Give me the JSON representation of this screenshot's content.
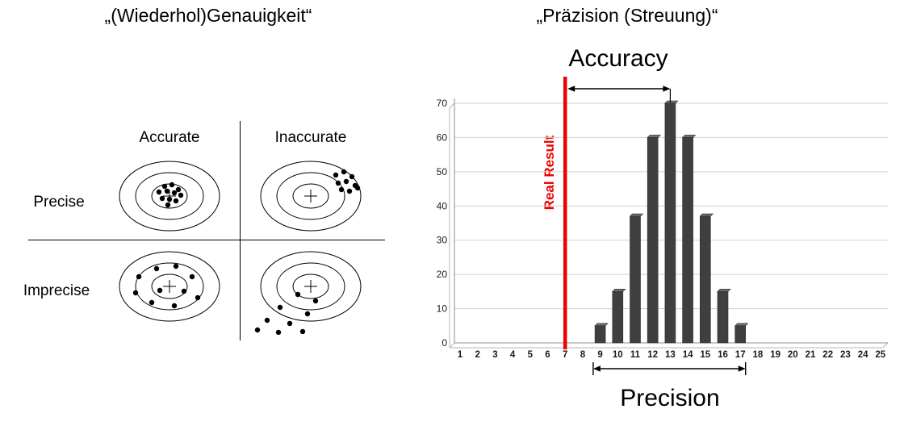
{
  "titles": {
    "left": "„(Wiederhol)Genauigkeit“",
    "right": "„Präzision (Streuung)“"
  },
  "quadrant_diagram": {
    "col_labels": [
      "Accurate",
      "Inaccurate"
    ],
    "row_labels": [
      "Precise",
      "Imprecise"
    ],
    "targets": [
      {
        "name": "precise-accurate",
        "dots": [
          [
            -6,
            -12
          ],
          [
            3,
            -14
          ],
          [
            11,
            -8
          ],
          [
            -13,
            -5
          ],
          [
            -3,
            -6
          ],
          [
            6,
            -4
          ],
          [
            14,
            -1
          ],
          [
            -9,
            3
          ],
          [
            0,
            4
          ],
          [
            8,
            6
          ],
          [
            -2,
            11
          ]
        ]
      },
      {
        "name": "precise-inaccurate",
        "dots": [
          [
            31,
            -26
          ],
          [
            41,
            -30
          ],
          [
            51,
            -24
          ],
          [
            34,
            -16
          ],
          [
            44,
            -18
          ],
          [
            55,
            -13
          ],
          [
            38,
            -8
          ],
          [
            48,
            -6
          ],
          [
            58,
            -10
          ]
        ]
      },
      {
        "name": "imprecise-accurate",
        "dots": [
          [
            -38,
            -12
          ],
          [
            -16,
            -22
          ],
          [
            8,
            -25
          ],
          [
            28,
            -12
          ],
          [
            -42,
            8
          ],
          [
            -12,
            5
          ],
          [
            18,
            6
          ],
          [
            35,
            14
          ],
          [
            -22,
            20
          ],
          [
            6,
            24
          ]
        ]
      },
      {
        "name": "imprecise-inaccurate",
        "dots": [
          [
            -16,
            10
          ],
          [
            6,
            18
          ],
          [
            -38,
            26
          ],
          [
            -4,
            34
          ],
          [
            -54,
            42
          ],
          [
            -26,
            46
          ],
          [
            -66,
            54
          ],
          [
            -40,
            57
          ],
          [
            -10,
            56
          ]
        ]
      }
    ]
  },
  "chart_data": {
    "type": "bar",
    "title": "",
    "xlabel": "",
    "ylabel": "",
    "categories": [
      1,
      2,
      3,
      4,
      5,
      6,
      7,
      8,
      9,
      10,
      11,
      12,
      13,
      14,
      15,
      16,
      17,
      18,
      19,
      20,
      21,
      22,
      23,
      24,
      25
    ],
    "values": [
      0,
      0,
      0,
      0,
      0,
      0,
      0,
      0,
      5,
      15,
      37,
      60,
      70,
      60,
      37,
      15,
      5,
      0,
      0,
      0,
      0,
      0,
      0,
      0,
      0
    ],
    "ylim": [
      0,
      70
    ],
    "ytick_step": 10,
    "grid": true,
    "bar_color": "#3f3f3f",
    "annotations": {
      "accuracy_label": "Accuracy",
      "precision_label": "Precision",
      "real_result_label": "Real Result",
      "real_result_x": 7,
      "real_result_color": "#ee0000",
      "accuracy_span": [
        7,
        13
      ],
      "precision_span": [
        8.6,
        17.3
      ]
    }
  }
}
